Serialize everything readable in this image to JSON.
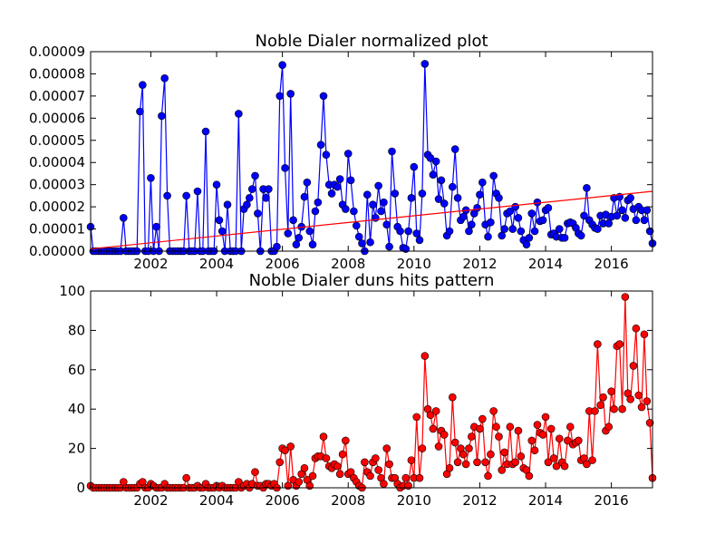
{
  "chart_data": [
    {
      "type": "line",
      "title": "Noble Dialer normalized plot",
      "x": [
        2000.17,
        2000.25,
        2000.33,
        2000.42,
        2000.5,
        2000.58,
        2000.67,
        2000.75,
        2000.83,
        2000.92,
        2001,
        2001.08,
        2001.17,
        2001.25,
        2001.33,
        2001.42,
        2001.5,
        2001.58,
        2001.67,
        2001.75,
        2001.83,
        2001.92,
        2002,
        2002.08,
        2002.17,
        2002.25,
        2002.33,
        2002.42,
        2002.5,
        2002.58,
        2002.67,
        2002.75,
        2002.83,
        2002.92,
        2003,
        2003.08,
        2003.17,
        2003.25,
        2003.33,
        2003.42,
        2003.5,
        2003.58,
        2003.67,
        2003.75,
        2003.83,
        2003.92,
        2004,
        2004.08,
        2004.17,
        2004.25,
        2004.33,
        2004.42,
        2004.5,
        2004.58,
        2004.67,
        2004.75,
        2004.83,
        2004.92,
        2005,
        2005.08,
        2005.17,
        2005.25,
        2005.33,
        2005.42,
        2005.5,
        2005.58,
        2005.67,
        2005.75,
        2005.83,
        2005.92,
        2006,
        2006.08,
        2006.17,
        2006.25,
        2006.33,
        2006.42,
        2006.5,
        2006.58,
        2006.67,
        2006.75,
        2006.83,
        2006.92,
        2007,
        2007.08,
        2007.17,
        2007.25,
        2007.33,
        2007.42,
        2007.5,
        2007.58,
        2007.67,
        2007.75,
        2007.83,
        2007.92,
        2008,
        2008.08,
        2008.17,
        2008.25,
        2008.33,
        2008.42,
        2008.5,
        2008.58,
        2008.67,
        2008.75,
        2008.83,
        2008.92,
        2009,
        2009.08,
        2009.17,
        2009.25,
        2009.33,
        2009.42,
        2009.5,
        2009.58,
        2009.67,
        2009.75,
        2009.83,
        2009.92,
        2010,
        2010.08,
        2010.17,
        2010.25,
        2010.33,
        2010.42,
        2010.5,
        2010.58,
        2010.67,
        2010.75,
        2010.83,
        2010.92,
        2011,
        2011.08,
        2011.17,
        2011.25,
        2011.33,
        2011.42,
        2011.5,
        2011.58,
        2011.67,
        2011.75,
        2011.83,
        2011.92,
        2012,
        2012.08,
        2012.17,
        2012.25,
        2012.33,
        2012.42,
        2012.5,
        2012.58,
        2012.67,
        2012.75,
        2012.83,
        2012.92,
        2013,
        2013.08,
        2013.17,
        2013.25,
        2013.33,
        2013.42,
        2013.5,
        2013.58,
        2013.67,
        2013.75,
        2013.83,
        2013.92,
        2014,
        2014.08,
        2014.17,
        2014.25,
        2014.33,
        2014.42,
        2014.5,
        2014.58,
        2014.67,
        2014.75,
        2014.83,
        2014.92,
        2015,
        2015.08,
        2015.17,
        2015.25,
        2015.33,
        2015.42,
        2015.5,
        2015.58,
        2015.67,
        2015.75,
        2015.83,
        2015.92,
        2016,
        2016.08,
        2016.17,
        2016.25,
        2016.33,
        2016.42,
        2016.5,
        2016.58,
        2016.67,
        2016.75,
        2016.83,
        2016.92,
        2017,
        2017.08,
        2017.17,
        2017.25
      ],
      "series": [
        {
          "color": "#0000ff",
          "marker": "circle",
          "values": [
            1.1e-05,
            0,
            0,
            0,
            0,
            0,
            0,
            0,
            0,
            0,
            0,
            0,
            1.5e-05,
            0,
            0,
            0,
            0,
            0,
            6.3e-05,
            7.5e-05,
            0,
            0,
            3.3e-05,
            0,
            1.1e-05,
            0,
            6.1e-05,
            7.8e-05,
            2.5e-05,
            0,
            0,
            0,
            0,
            0,
            0,
            2.5e-05,
            0,
            0,
            0,
            2.7e-05,
            0,
            0,
            5.4e-05,
            0,
            0,
            0,
            3e-05,
            1.4e-05,
            9e-06,
            0,
            2.1e-05,
            0,
            0,
            0,
            6.2e-05,
            0,
            1.9e-05,
            2.1e-05,
            2.4e-05,
            2.8e-05,
            3.4e-05,
            1.7e-05,
            0,
            2.8e-05,
            2.4e-05,
            2.8e-05,
            0,
            0,
            2e-06,
            7e-05,
            8.4e-05,
            3.75e-05,
            8e-06,
            7.1e-05,
            1.4e-05,
            3e-06,
            6e-06,
            1.1e-05,
            2.45e-05,
            3.1e-05,
            9e-06,
            3e-06,
            1.8e-05,
            2.2e-05,
            4.8e-05,
            7e-05,
            4.35e-05,
            3e-05,
            2.6e-05,
            3e-05,
            2.9e-05,
            3.25e-05,
            2.1e-05,
            1.9e-05,
            4.4e-05,
            3.2e-05,
            1.8e-05,
            1.15e-05,
            6.5e-06,
            3.5e-06,
            0,
            2.55e-05,
            4e-06,
            2.1e-05,
            1.5e-05,
            2.95e-05,
            1.8e-05,
            2.2e-05,
            1.2e-05,
            2e-06,
            4.5e-05,
            2.6e-05,
            1.1e-05,
            9e-06,
            1.5e-06,
            1e-06,
            9e-06,
            2.4e-05,
            3.8e-05,
            8e-06,
            5e-06,
            2.6e-05,
            8.45e-05,
            4.35e-05,
            4.2e-05,
            3.45e-05,
            4.05e-05,
            2.35e-05,
            3.2e-05,
            2.15e-05,
            7e-06,
            9e-06,
            2.9e-05,
            4.6e-05,
            2.4e-05,
            1.4e-05,
            1.55e-05,
            1.85e-05,
            9e-06,
            1.2e-05,
            1.7e-05,
            1.95e-05,
            2.55e-05,
            3.1e-05,
            1.2e-05,
            6.5e-06,
            1.3e-05,
            3.4e-05,
            2.6e-05,
            2.4e-05,
            7e-06,
            1e-05,
            1.7e-05,
            1.8e-05,
            1e-05,
            2e-05,
            1.5e-05,
            9e-06,
            5e-06,
            3e-06,
            6e-06,
            1.7e-05,
            9e-06,
            2.2e-05,
            1.35e-05,
            1.4e-05,
            1.85e-05,
            1.95e-05,
            7.5e-06,
            8e-06,
            6.5e-06,
            1e-05,
            6e-06,
            6e-06,
            1.25e-05,
            1.3e-05,
            1.25e-05,
            1.05e-05,
            8e-06,
            7e-06,
            1.6e-05,
            2.85e-05,
            1.4e-05,
            1.2e-05,
            1.05e-05,
            1e-05,
            1.6e-05,
            1.25e-05,
            1.65e-05,
            1.25e-05,
            1.55e-05,
            2.4e-05,
            1.6e-05,
            2.45e-05,
            1.85e-05,
            1.5e-05,
            2.3e-05,
            2.4e-05,
            1.9e-05,
            1.4e-05,
            2e-05,
            1.85e-05,
            1.4e-05,
            1.85e-05,
            9e-06,
            3.5e-06
          ]
        },
        {
          "color": "#ff0000",
          "x": [
            2000.17,
            2017.25
          ],
          "values": [
            1e-06,
            2.7e-05
          ]
        }
      ],
      "xlim": [
        2000.17,
        2017.25
      ],
      "ylim": [
        0,
        9e-05
      ],
      "xticks": [
        2002,
        2004,
        2006,
        2008,
        2010,
        2012,
        2014,
        2016
      ],
      "yticks": [
        {
          "value": 0,
          "label": "0.00000"
        },
        {
          "value": 1e-05,
          "label": "0.00001"
        },
        {
          "value": 2e-05,
          "label": "0.00002"
        },
        {
          "value": 3e-05,
          "label": "0.00003"
        },
        {
          "value": 4e-05,
          "label": "0.00004"
        },
        {
          "value": 5e-05,
          "label": "0.00005"
        },
        {
          "value": 6e-05,
          "label": "0.00006"
        },
        {
          "value": 7e-05,
          "label": "0.00007"
        },
        {
          "value": 8e-05,
          "label": "0.00008"
        },
        {
          "value": 9e-05,
          "label": "0.00009"
        }
      ]
    },
    {
      "type": "line",
      "title": "Noble Dialer duns hits pattern",
      "x": [
        2000.17,
        2000.25,
        2000.33,
        2000.42,
        2000.5,
        2000.58,
        2000.67,
        2000.75,
        2000.83,
        2000.92,
        2001,
        2001.08,
        2001.17,
        2001.25,
        2001.33,
        2001.42,
        2001.5,
        2001.58,
        2001.67,
        2001.75,
        2001.83,
        2001.92,
        2002,
        2002.08,
        2002.17,
        2002.25,
        2002.33,
        2002.42,
        2002.5,
        2002.58,
        2002.67,
        2002.75,
        2002.83,
        2002.92,
        2003,
        2003.08,
        2003.17,
        2003.25,
        2003.33,
        2003.42,
        2003.5,
        2003.58,
        2003.67,
        2003.75,
        2003.83,
        2003.92,
        2004,
        2004.08,
        2004.17,
        2004.25,
        2004.33,
        2004.42,
        2004.5,
        2004.58,
        2004.67,
        2004.75,
        2004.83,
        2004.92,
        2005,
        2005.08,
        2005.17,
        2005.25,
        2005.33,
        2005.42,
        2005.5,
        2005.58,
        2005.67,
        2005.75,
        2005.83,
        2005.92,
        2006,
        2006.08,
        2006.17,
        2006.25,
        2006.33,
        2006.42,
        2006.5,
        2006.58,
        2006.67,
        2006.75,
        2006.83,
        2006.92,
        2007,
        2007.08,
        2007.17,
        2007.25,
        2007.33,
        2007.42,
        2007.5,
        2007.58,
        2007.67,
        2007.75,
        2007.83,
        2007.92,
        2008,
        2008.08,
        2008.17,
        2008.25,
        2008.33,
        2008.42,
        2008.5,
        2008.58,
        2008.67,
        2008.75,
        2008.83,
        2008.92,
        2009,
        2009.08,
        2009.17,
        2009.25,
        2009.33,
        2009.42,
        2009.5,
        2009.58,
        2009.67,
        2009.75,
        2009.83,
        2009.92,
        2010,
        2010.08,
        2010.17,
        2010.25,
        2010.33,
        2010.42,
        2010.5,
        2010.58,
        2010.67,
        2010.75,
        2010.83,
        2010.92,
        2011,
        2011.08,
        2011.17,
        2011.25,
        2011.33,
        2011.42,
        2011.5,
        2011.58,
        2011.67,
        2011.75,
        2011.83,
        2011.92,
        2012,
        2012.08,
        2012.17,
        2012.25,
        2012.33,
        2012.42,
        2012.5,
        2012.58,
        2012.67,
        2012.75,
        2012.83,
        2012.92,
        2013,
        2013.08,
        2013.17,
        2013.25,
        2013.33,
        2013.42,
        2013.5,
        2013.58,
        2013.67,
        2013.75,
        2013.83,
        2013.92,
        2014,
        2014.08,
        2014.17,
        2014.25,
        2014.33,
        2014.42,
        2014.5,
        2014.58,
        2014.67,
        2014.75,
        2014.83,
        2014.92,
        2015,
        2015.08,
        2015.17,
        2015.25,
        2015.33,
        2015.42,
        2015.5,
        2015.58,
        2015.67,
        2015.75,
        2015.83,
        2015.92,
        2016,
        2016.08,
        2016.17,
        2016.25,
        2016.33,
        2016.42,
        2016.5,
        2016.58,
        2016.67,
        2016.75,
        2016.83,
        2016.92,
        2017,
        2017.08,
        2017.17,
        2017.25
      ],
      "series": [
        {
          "color": "#ff0000",
          "marker": "circle",
          "values": [
            1,
            0,
            0,
            0,
            0,
            0,
            0,
            0,
            0,
            0,
            0,
            0,
            3,
            0,
            0,
            0,
            0,
            0,
            2,
            3,
            0,
            0,
            2,
            1,
            0,
            0,
            0,
            2,
            0,
            0,
            0,
            0,
            0,
            0,
            0,
            5,
            0,
            0,
            0,
            1,
            0,
            0,
            2,
            0,
            0,
            0,
            1,
            0,
            1,
            0,
            0,
            0,
            0,
            0,
            3,
            0,
            1,
            2,
            0,
            2,
            8,
            1,
            1,
            0,
            2,
            2,
            1,
            2,
            0,
            13,
            20,
            19,
            1,
            21,
            4,
            1,
            3,
            7,
            10,
            4,
            1,
            6,
            15,
            16,
            16,
            26,
            15,
            11,
            10,
            12,
            11,
            7,
            17,
            24,
            7,
            8,
            5,
            3,
            1,
            0,
            13,
            8,
            6,
            13,
            15,
            9,
            5,
            2,
            20,
            12,
            5,
            5,
            2,
            0,
            1,
            5,
            1,
            14,
            5,
            36,
            5,
            20,
            67,
            40,
            37,
            30,
            39,
            21,
            29,
            27,
            7,
            10,
            46,
            23,
            13,
            20,
            17,
            12,
            20,
            26,
            31,
            13,
            30,
            35,
            13,
            6,
            17,
            39,
            31,
            26,
            9,
            18,
            12,
            31,
            12,
            13,
            29,
            16,
            10,
            9,
            6,
            24,
            19,
            32,
            28,
            27,
            36,
            13,
            30,
            15,
            11,
            25,
            13,
            11,
            24,
            31,
            22,
            23,
            24,
            14,
            15,
            12,
            39,
            14,
            39,
            73,
            42,
            46,
            29,
            31,
            49,
            40,
            72,
            73,
            40,
            97,
            48,
            45,
            62,
            81,
            47,
            41,
            78,
            44,
            33,
            5
          ]
        }
      ],
      "xlim": [
        2000.17,
        2017.25
      ],
      "ylim": [
        0,
        100
      ],
      "xticks": [
        2002,
        2004,
        2006,
        2008,
        2010,
        2012,
        2014,
        2016
      ],
      "yticks": [
        0,
        20,
        40,
        60,
        80,
        100
      ]
    }
  ]
}
